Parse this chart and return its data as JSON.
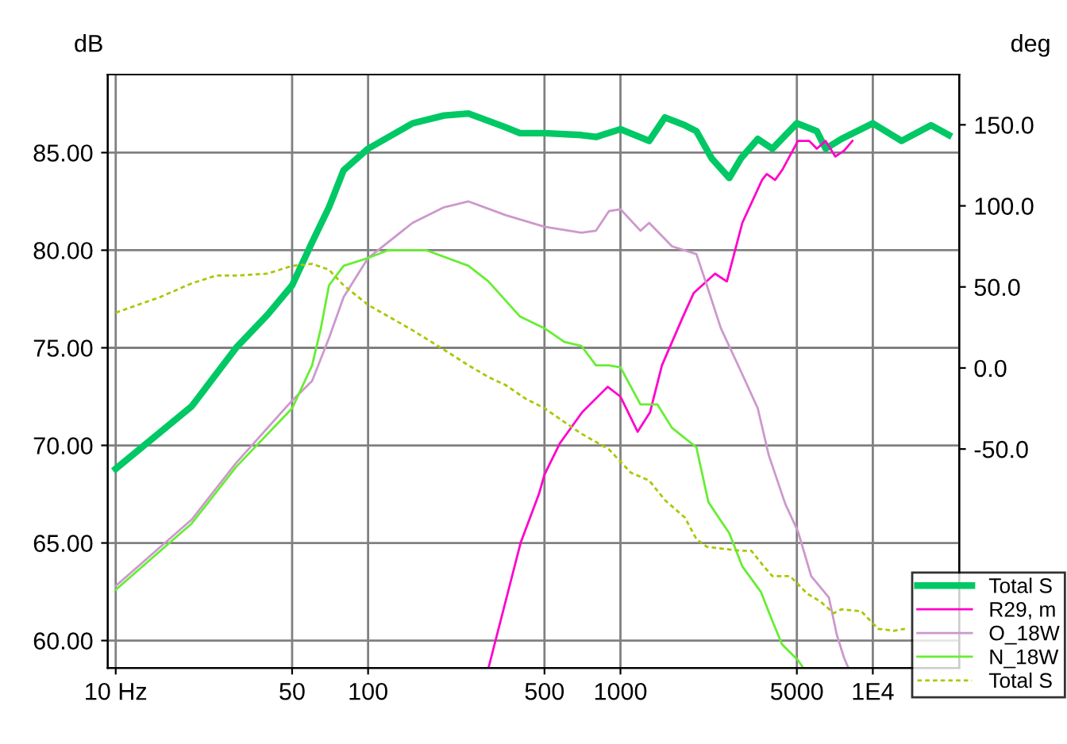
{
  "chart_data": {
    "type": "line",
    "ylabel": "dB",
    "y2label": "deg",
    "log": "x",
    "grid": true,
    "legend": "bottom right",
    "marker": "none",
    "xlim": [
      9.3,
      22000
    ],
    "xticks": [
      {
        "value": 10,
        "label": "10 Hz"
      },
      50,
      100,
      500,
      1000,
      5000,
      {
        "value": 10000,
        "label": "1E4"
      }
    ],
    "ylim": [
      58.6,
      89
    ],
    "yticks": [
      {
        "value": 60,
        "label": "60.00"
      },
      {
        "value": 65,
        "label": "65.00"
      },
      {
        "value": 70,
        "label": "70.00"
      },
      {
        "value": 75,
        "label": "75.00"
      },
      {
        "value": 80,
        "label": "80.00"
      },
      {
        "value": 85,
        "label": "85.00"
      }
    ],
    "y2lim": [
      -185,
      181
    ],
    "y2ticks": [
      {
        "value": -50,
        "label": "-50.0"
      },
      {
        "value": 0,
        "label": "0.0"
      },
      {
        "value": 50,
        "label": "50.0"
      },
      {
        "value": 100,
        "label": "100.0"
      },
      {
        "value": 150,
        "label": "150.0"
      }
    ],
    "series": [
      {
        "name": "Total S",
        "color": "#00c864",
        "line_style": "solid",
        "x": [
          10,
          20,
          30,
          40,
          50,
          60,
          70,
          80,
          100,
          150,
          200,
          250,
          350,
          400,
          500,
          700,
          800,
          1000,
          1300,
          1500,
          1800,
          2000,
          2300,
          2700,
          3000,
          3500,
          4000,
          5000,
          6000,
          6500,
          7500,
          10000,
          13000,
          17000,
          20000
        ],
        "values": [
          68.8,
          72.0,
          75.0,
          76.7,
          78.2,
          80.4,
          82.2,
          84.1,
          85.2,
          86.5,
          86.9,
          87.0,
          86.3,
          86.0,
          86.0,
          85.9,
          85.8,
          86.2,
          85.6,
          86.8,
          86.4,
          86.1,
          84.7,
          83.7,
          84.7,
          85.7,
          85.2,
          86.5,
          86.1,
          85.2,
          85.7,
          86.5,
          85.6,
          86.4,
          85.9
        ]
      },
      {
        "name": "R29, m",
        "color": "#ff00cc",
        "line_style": "solid",
        "x": [
          300,
          402,
          475,
          500,
          575,
          705,
          890,
          1000,
          1170,
          1310,
          1460,
          1770,
          1950,
          2370,
          2640,
          2820,
          3040,
          3640,
          3800,
          4100,
          4370,
          5050,
          5600,
          6000,
          6500,
          7100,
          7700,
          8300
        ],
        "values": [
          58.6,
          65.0,
          67.5,
          68.5,
          70.1,
          71.7,
          73.0,
          72.5,
          70.7,
          71.7,
          74.1,
          76.6,
          77.8,
          78.8,
          78.4,
          79.8,
          81.4,
          83.6,
          83.9,
          83.6,
          84.1,
          85.6,
          85.6,
          85.2,
          85.6,
          84.8,
          85.1,
          85.6
        ]
      },
      {
        "name": "O_18W",
        "color": "#cc99cc",
        "line_style": "solid",
        "x": [
          10,
          20,
          30,
          50,
          60,
          70,
          80,
          100,
          150,
          200,
          250,
          350,
          500,
          700,
          800,
          900,
          1000,
          1200,
          1300,
          1600,
          2000,
          2200,
          2500,
          3000,
          3500,
          3870,
          4500,
          5050,
          5700,
          6700,
          7200,
          7700,
          8000
        ],
        "values": [
          62.8,
          66.2,
          69.1,
          72.3,
          73.3,
          75.5,
          77.6,
          79.6,
          81.4,
          82.2,
          82.5,
          81.8,
          81.2,
          80.9,
          81.0,
          82.0,
          82.1,
          81.0,
          81.4,
          80.2,
          79.8,
          78.2,
          76.0,
          73.8,
          71.9,
          69.5,
          67.0,
          65.6,
          63.3,
          62.2,
          60.3,
          59.1,
          58.6
        ]
      },
      {
        "name": "N_18W",
        "color": "#66ee33",
        "line_style": "solid",
        "x": [
          10,
          20,
          30,
          50,
          60,
          65,
          70,
          80,
          100,
          120,
          170,
          250,
          300,
          400,
          500,
          600,
          700,
          800,
          900,
          1000,
          1200,
          1400,
          1600,
          2000,
          2230,
          2450,
          2700,
          3040,
          3600,
          4000,
          4370,
          5050,
          5300
        ],
        "values": [
          62.6,
          66.0,
          68.9,
          71.9,
          74.1,
          76.0,
          78.2,
          79.2,
          79.6,
          80.0,
          80.0,
          79.2,
          78.4,
          76.6,
          76.0,
          75.3,
          75.1,
          74.1,
          74.1,
          74.0,
          72.1,
          72.1,
          70.9,
          69.9,
          67.1,
          66.3,
          65.5,
          63.8,
          62.5,
          61.0,
          59.8,
          59.0,
          58.6
        ]
      },
      {
        "name": "Total S",
        "color": "#a8c800",
        "line_style": "dashed",
        "x": [
          10,
          15,
          20,
          25,
          30,
          40,
          50,
          60,
          70,
          80,
          100,
          150,
          200,
          250,
          300,
          350,
          420,
          500,
          700,
          900,
          1100,
          1300,
          1500,
          1800,
          2000,
          2200,
          3000,
          3300,
          3700,
          4000,
          4700,
          5500,
          6200,
          7000,
          7500,
          9000,
          10500,
          12100,
          13400
        ],
        "values": [
          76.8,
          77.6,
          78.3,
          78.7,
          78.7,
          78.8,
          79.2,
          79.3,
          79.0,
          78.2,
          77.2,
          75.9,
          74.9,
          74.1,
          73.5,
          73.1,
          72.4,
          71.9,
          70.6,
          69.8,
          68.6,
          68.2,
          67.2,
          66.3,
          65.2,
          64.8,
          64.6,
          64.6,
          63.8,
          63.3,
          63.3,
          62.4,
          62.0,
          61.4,
          61.6,
          61.5,
          60.6,
          60.5,
          60.6
        ]
      }
    ]
  }
}
